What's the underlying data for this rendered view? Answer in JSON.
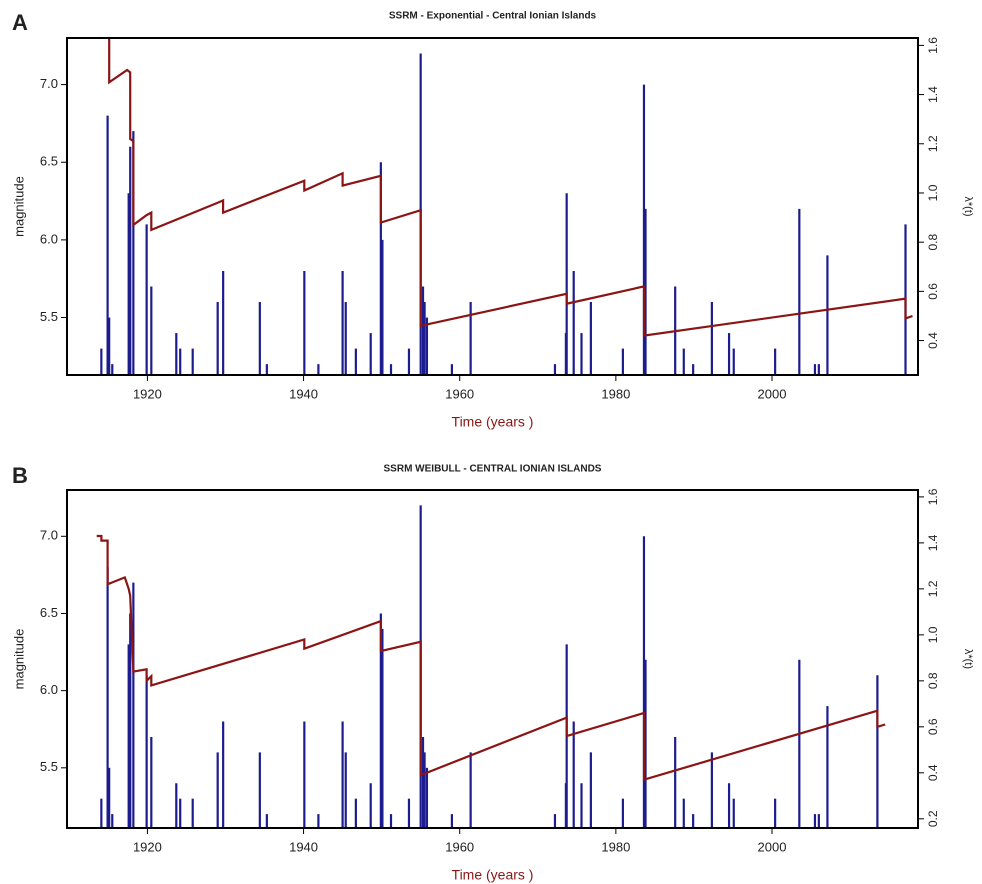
{
  "chart_data": [
    {
      "type": "spike-line",
      "panel": "A",
      "title": "SSRM - Exponential - Central Ionian Islands",
      "xlabel": "Time (years )",
      "ylabel": "magnitude",
      "y2label": "λ*(t)",
      "xlim": [
        1909.7,
        2018.7
      ],
      "xticks": [
        1920,
        1940,
        1960,
        1980,
        2000
      ],
      "ylim": [
        5.13,
        7.3
      ],
      "yticks": [
        5.5,
        {
          "value": 6,
          "label": "6.0"
        },
        6.5,
        {
          "value": 7,
          "label": "7.0"
        }
      ],
      "y2lim": [
        0.26,
        1.63
      ],
      "y2ticks": [
        0.4,
        0.6,
        0.8,
        {
          "value": 1,
          "label": "1.0"
        },
        1.2,
        1.4,
        1.6
      ],
      "events": {
        "color": "#1c1c8f",
        "x": [
          1914.1,
          1914.9,
          1915.1,
          1915.5,
          1917.6,
          1917.8,
          1918.2,
          1919.9,
          1920.5,
          1923.7,
          1924.2,
          1925.8,
          1929.0,
          1929.7,
          1934.4,
          1935.3,
          1940.1,
          1941.9,
          1945.0,
          1945.4,
          1946.7,
          1948.6,
          1949.9,
          1950.1,
          1951.2,
          1953.5,
          1955.0,
          1955.3,
          1955.5,
          1955.8,
          1959.0,
          1961.4,
          1972.2,
          1973.6,
          1973.7,
          1974.6,
          1975.6,
          1976.8,
          1980.9,
          1983.6,
          1983.8,
          1987.6,
          1988.7,
          1989.9,
          1992.3,
          1994.5,
          1995.1,
          2000.4,
          2003.5,
          2005.5,
          2006.0,
          2007.1,
          2017.1
        ],
        "values": [
          5.3,
          6.8,
          5.5,
          5.2,
          6.3,
          6.6,
          6.7,
          6.1,
          5.7,
          5.4,
          5.3,
          5.3,
          5.6,
          5.8,
          5.6,
          5.2,
          5.8,
          5.2,
          5.8,
          5.6,
          5.3,
          5.4,
          6.5,
          6.0,
          5.2,
          5.3,
          7.2,
          5.7,
          5.6,
          5.5,
          5.2,
          5.6,
          5.2,
          5.4,
          6.3,
          5.8,
          5.4,
          5.6,
          5.3,
          7.0,
          6.2,
          5.7,
          5.3,
          5.2,
          5.6,
          5.4,
          5.3,
          5.3,
          6.2,
          5.2,
          5.2,
          5.9,
          6.1
        ]
      },
      "intensity": {
        "color": "#8b1515",
        "axis": "y2",
        "x": [
          1914.9,
          1915.1,
          1915.1,
          1917.4,
          1917.8,
          1917.8,
          1918.2,
          1918.2,
          1919.9,
          1920.5,
          1920.5,
          1929.0,
          1929.7,
          1929.7,
          1940.1,
          1940.1,
          1945.0,
          1945.0,
          1949.9,
          1949.9,
          1955.0,
          1955.0,
          1973.7,
          1973.7,
          1983.6,
          1983.6,
          2017.1,
          2017.1,
          2018.0
        ],
        "values": [
          1.66,
          1.66,
          1.45,
          1.5,
          1.49,
          1.22,
          1.21,
          0.87,
          0.91,
          0.92,
          0.85,
          0.96,
          0.97,
          0.92,
          1.05,
          1.01,
          1.08,
          1.03,
          1.07,
          0.88,
          0.93,
          0.46,
          0.59,
          0.55,
          0.62,
          0.42,
          0.57,
          0.49,
          0.5
        ]
      }
    },
    {
      "type": "spike-line",
      "panel": "B",
      "title": "SSRM WEIBULL - CENTRAL IONIAN ISLANDS",
      "xlabel": "Time (years )",
      "ylabel": "magnitude",
      "y2label": "λ*(t)",
      "xlim": [
        1909.7,
        2018.7
      ],
      "xticks": [
        1920,
        1940,
        1960,
        1980,
        2000
      ],
      "ylim": [
        5.11,
        7.3
      ],
      "yticks": [
        5.5,
        {
          "value": 6,
          "label": "6.0"
        },
        6.5,
        {
          "value": 7,
          "label": "7.0"
        }
      ],
      "y2lim": [
        0.16,
        1.63
      ],
      "y2ticks": [
        0.2,
        0.4,
        0.6,
        0.8,
        {
          "value": 1,
          "label": "1.0"
        },
        1.2,
        1.4,
        1.6
      ],
      "events": {
        "color": "#1c1c8f",
        "x": [
          1914.1,
          1914.9,
          1915.1,
          1915.5,
          1917.6,
          1917.8,
          1918.2,
          1919.9,
          1920.5,
          1923.7,
          1924.2,
          1925.8,
          1929.0,
          1929.7,
          1934.4,
          1935.3,
          1940.1,
          1941.9,
          1945.0,
          1945.4,
          1946.7,
          1948.6,
          1949.9,
          1950.1,
          1951.2,
          1953.5,
          1955.0,
          1955.3,
          1955.5,
          1955.8,
          1959.0,
          1961.4,
          1972.2,
          1973.6,
          1973.7,
          1974.6,
          1975.6,
          1976.8,
          1980.9,
          1983.6,
          1983.8,
          1987.6,
          1988.7,
          1989.9,
          1992.3,
          1994.5,
          1995.1,
          2000.4,
          2003.5,
          2005.5,
          2006.0,
          2007.1,
          2013.5
        ],
        "values": [
          5.3,
          6.8,
          5.5,
          5.2,
          6.3,
          6.5,
          6.7,
          6.1,
          5.7,
          5.4,
          5.3,
          5.3,
          5.6,
          5.8,
          5.6,
          5.2,
          5.8,
          5.2,
          5.8,
          5.6,
          5.3,
          5.4,
          6.5,
          6.4,
          5.2,
          5.3,
          7.2,
          5.7,
          5.6,
          5.5,
          5.2,
          5.6,
          5.2,
          5.4,
          6.3,
          5.8,
          5.4,
          5.6,
          5.3,
          7.0,
          6.2,
          5.7,
          5.3,
          5.2,
          5.6,
          5.4,
          5.3,
          5.3,
          6.2,
          5.2,
          5.2,
          5.9,
          6.1
        ]
      },
      "intensity": {
        "color": "#8b1515",
        "axis": "y2",
        "x": [
          1913.5,
          1914.1,
          1914.1,
          1914.9,
          1914.9,
          1917.1,
          1917.6,
          1917.8,
          1918.2,
          1919.9,
          1919.9,
          1920.5,
          1920.5,
          1940.1,
          1940.1,
          1949.9,
          1949.9,
          1955.0,
          1955.0,
          1973.7,
          1973.7,
          1983.6,
          1983.6,
          2013.5,
          2013.5,
          2014.5
        ],
        "values": [
          1.43,
          1.43,
          1.41,
          1.41,
          1.22,
          1.25,
          1.2,
          1.17,
          0.84,
          0.85,
          0.8,
          0.82,
          0.78,
          0.98,
          0.94,
          1.06,
          0.93,
          0.97,
          0.39,
          0.64,
          0.56,
          0.66,
          0.37,
          0.67,
          0.6,
          0.61
        ]
      }
    }
  ]
}
